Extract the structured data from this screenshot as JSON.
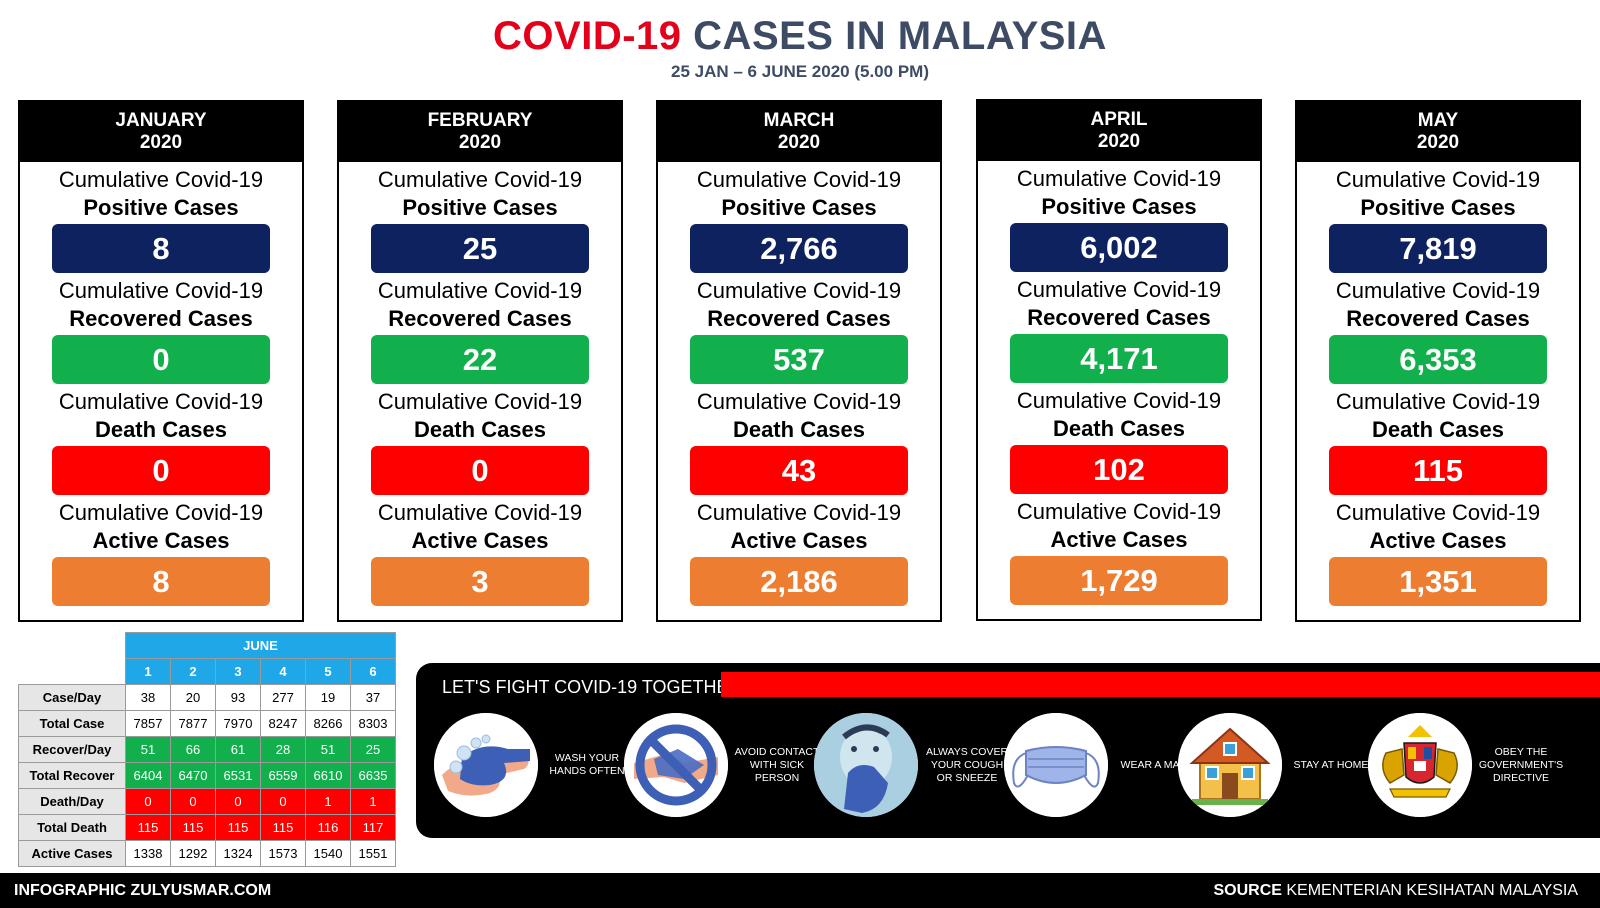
{
  "title": {
    "part1": "COVID-19",
    "part2": "CASES IN MALAYSIA"
  },
  "subtitle": "25 JAN – 6 JUNE 2020 (5.00 PM)",
  "labels": {
    "prefix": "Cumulative Covid-19",
    "positive": "Positive Cases",
    "recovered": "Recovered Cases",
    "death": "Death Cases",
    "active": "Active Cases"
  },
  "months": [
    {
      "name": "JANUARY",
      "year": "2020",
      "positive": "8",
      "recovered": "0",
      "death": "0",
      "active": "8"
    },
    {
      "name": "FEBRUARY",
      "year": "2020",
      "positive": "25",
      "recovered": "22",
      "death": "0",
      "active": "3"
    },
    {
      "name": "MARCH",
      "year": "2020",
      "positive": "2,766",
      "recovered": "537",
      "death": "43",
      "active": "2,186"
    },
    {
      "name": "APRIL",
      "year": "2020",
      "positive": "6,002",
      "recovered": "4,171",
      "death": "102",
      "active": "1,729"
    },
    {
      "name": "MAY",
      "year": "2020",
      "positive": "7,819",
      "recovered": "6,353",
      "death": "115",
      "active": "1,351"
    }
  ],
  "june": {
    "header": "JUNE",
    "days": [
      "1",
      "2",
      "3",
      "4",
      "5",
      "6"
    ],
    "rows": [
      {
        "label": "Case/Day",
        "values": [
          "38",
          "20",
          "93",
          "277",
          "19",
          "37"
        ]
      },
      {
        "label": "Total Case",
        "values": [
          "7857",
          "7877",
          "7970",
          "8247",
          "8266",
          "8303"
        ]
      },
      {
        "label": "Recover/Day",
        "values": [
          "51",
          "66",
          "61",
          "28",
          "51",
          "25"
        ]
      },
      {
        "label": "Total Recover",
        "values": [
          "6404",
          "6470",
          "6531",
          "6559",
          "6610",
          "6635"
        ]
      },
      {
        "label": "Death/Day",
        "values": [
          "0",
          "0",
          "0",
          "0",
          "1",
          "1"
        ]
      },
      {
        "label": "Total Death",
        "values": [
          "115",
          "115",
          "115",
          "115",
          "116",
          "117"
        ]
      },
      {
        "label": "Active Cases",
        "values": [
          "1338",
          "1292",
          "1324",
          "1573",
          "1540",
          "1551"
        ]
      }
    ]
  },
  "banner": {
    "title": "LET'S FIGHT COVID-19 TOGETHER",
    "tips": [
      {
        "icon": "hand-washing-icon",
        "text": "WASH YOUR HANDS OFTEN"
      },
      {
        "icon": "no-handshake-icon",
        "text": "AVOID CONTACT WITH SICK PERSON"
      },
      {
        "icon": "cover-cough-icon",
        "text": "ALWAYS COVER YOUR COUGH OR SNEEZE"
      },
      {
        "icon": "face-mask-icon",
        "text": "WEAR A MASK"
      },
      {
        "icon": "house-icon",
        "text": "STAY AT HOME"
      },
      {
        "icon": "coat-of-arms-icon",
        "text": "OBEY THE GOVERNMENT'S DIRECTIVE"
      }
    ]
  },
  "footer": {
    "left": "INFOGRAPHIC ZULYUSMAR.COM",
    "source_label": "SOURCE",
    "source_text": "KEMENTERIAN KESIHATAN MALAYSIA"
  },
  "colors": {
    "positive": "#0e2260",
    "recovered": "#12b04c",
    "death": "#fe0000",
    "active": "#ed7d31",
    "june_header": "#1fa7e8"
  }
}
